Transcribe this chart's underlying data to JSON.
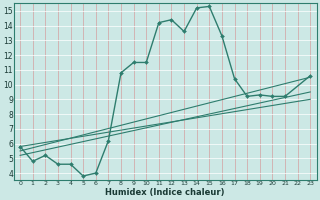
{
  "xlabel": "Humidex (Indice chaleur)",
  "background_color": "#cce8e5",
  "grid_color": "#b0d4d0",
  "line_color": "#2e7d6e",
  "xlim": [
    -0.5,
    23.5
  ],
  "ylim": [
    3.5,
    15.5
  ],
  "xticks": [
    0,
    1,
    2,
    3,
    4,
    5,
    6,
    7,
    8,
    9,
    10,
    11,
    12,
    13,
    14,
    15,
    16,
    17,
    18,
    19,
    20,
    21,
    22,
    23
  ],
  "yticks": [
    4,
    5,
    6,
    7,
    8,
    9,
    10,
    11,
    12,
    13,
    14,
    15
  ],
  "main_x": [
    0,
    1,
    2,
    3,
    4,
    5,
    6,
    7,
    8,
    9,
    10,
    11,
    12,
    13,
    14,
    15,
    16,
    17,
    18,
    19,
    20,
    21,
    23
  ],
  "main_y": [
    5.8,
    4.8,
    5.2,
    4.6,
    4.6,
    3.8,
    4.0,
    6.2,
    10.8,
    11.5,
    11.5,
    14.2,
    14.4,
    13.6,
    15.2,
    15.3,
    13.3,
    10.4,
    9.2,
    9.3,
    9.2,
    9.2,
    10.6
  ],
  "line2_x": [
    0,
    23
  ],
  "line2_y": [
    5.5,
    10.5
  ],
  "line3_x": [
    0,
    23
  ],
  "line3_y": [
    5.2,
    9.5
  ],
  "line4_x": [
    0,
    23
  ],
  "line4_y": [
    5.8,
    9.0
  ]
}
